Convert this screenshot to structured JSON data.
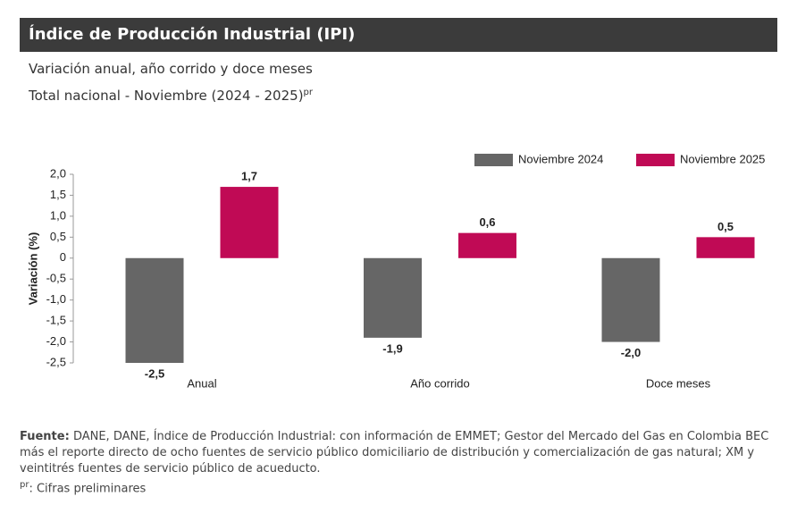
{
  "header": {
    "title": "Índice de Producción Industrial (IPI)"
  },
  "subtitle": {
    "line1": "Variación anual, año corrido y doce meses",
    "line2": "Total nacional - Noviembre (2024 - 2025)",
    "line2_sup": "pr"
  },
  "chart_data": {
    "type": "bar",
    "categories": [
      "Anual",
      "Año corrido",
      "Doce meses"
    ],
    "series": [
      {
        "name": "Noviembre 2024",
        "color": "#666666",
        "values": [
          -2.5,
          -1.9,
          -2.0
        ],
        "value_labels": [
          "-2,5",
          "-1,9",
          "-2,0"
        ]
      },
      {
        "name": "Noviembre 2025",
        "color": "#c00a55",
        "values": [
          1.7,
          0.6,
          0.5
        ],
        "value_labels": [
          "1,7",
          "0,6",
          "0,5"
        ]
      }
    ],
    "ylabel": "Variación (%)",
    "ylim": [
      -2.5,
      2.0
    ],
    "yticks": [
      {
        "value": 2.0,
        "label": "2,0"
      },
      {
        "value": 1.5,
        "label": "1,5"
      },
      {
        "value": 1.0,
        "label": "1,0"
      },
      {
        "value": 0.5,
        "label": "0,5"
      },
      0,
      {
        "value": -0.5,
        "label": "-0,5"
      },
      {
        "value": -1.0,
        "label": "-1,0"
      },
      {
        "value": -1.5,
        "label": "-1,5"
      },
      {
        "value": -2.0,
        "label": "-2,0"
      },
      {
        "value": -2.5,
        "label": "-2,5"
      }
    ],
    "grid": false,
    "legend": "top-right"
  },
  "footer": {
    "source_label": "Fuente:",
    "source_text": "DANE, DANE, Índice de Producción Industrial: con información de EMMET; Gestor del Mercado del Gas en Colombia BEC más el reporte directo de ocho fuentes de servicio público domiciliario de distribución y comercialización de gas natural; XM y veintitrés fuentes de servicio público de acueducto.",
    "note_sup": "pr",
    "note_text": ": Cifras preliminares"
  }
}
